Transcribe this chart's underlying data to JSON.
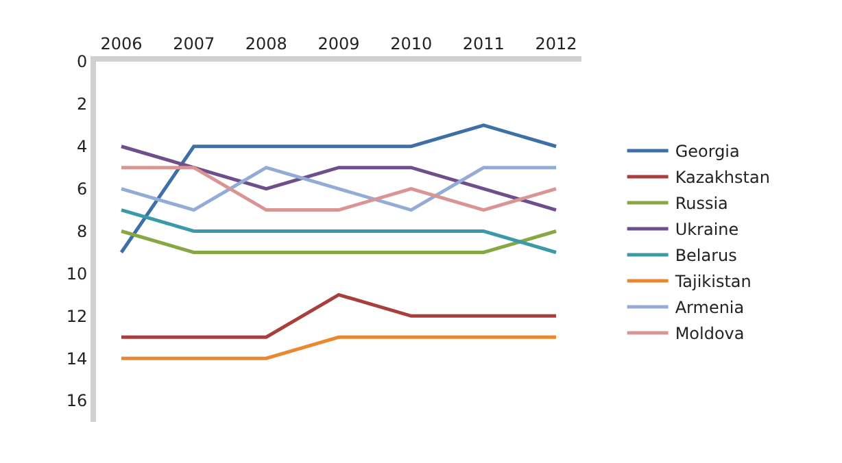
{
  "chart_data": {
    "type": "line",
    "categories": [
      "2006",
      "2007",
      "2008",
      "2009",
      "2010",
      "2011",
      "2012"
    ],
    "series": [
      {
        "name": "Georgia",
        "color": "#3f6fa8",
        "values": [
          9,
          4,
          4,
          4,
          4,
          3,
          4
        ]
      },
      {
        "name": "Kazakhstan",
        "color": "#a83f3d",
        "values": [
          13,
          13,
          13,
          11,
          12,
          12,
          12
        ]
      },
      {
        "name": "Russia",
        "color": "#86a844",
        "values": [
          8,
          9,
          9,
          9,
          9,
          9,
          8
        ]
      },
      {
        "name": "Ukraine",
        "color": "#6e4f8c",
        "values": [
          4,
          5,
          6,
          5,
          5,
          6,
          7
        ]
      },
      {
        "name": "Belarus",
        "color": "#3a9aa8",
        "values": [
          7,
          8,
          8,
          8,
          8,
          8,
          9
        ]
      },
      {
        "name": "Tajikistan",
        "color": "#e8892e",
        "values": [
          14,
          14,
          14,
          13,
          13,
          13,
          13
        ]
      },
      {
        "name": "Armenia",
        "color": "#93acd6",
        "values": [
          6,
          7,
          5,
          6,
          7,
          5,
          5
        ]
      },
      {
        "name": "Moldova",
        "color": "#d99593",
        "values": [
          5,
          5,
          7,
          7,
          6,
          7,
          6
        ]
      }
    ],
    "ylim": [
      17,
      0
    ],
    "yticks": [
      0,
      2,
      4,
      6,
      8,
      10,
      12,
      14,
      16
    ],
    "legend": "right",
    "marker": "none",
    "line_style": "solid"
  }
}
